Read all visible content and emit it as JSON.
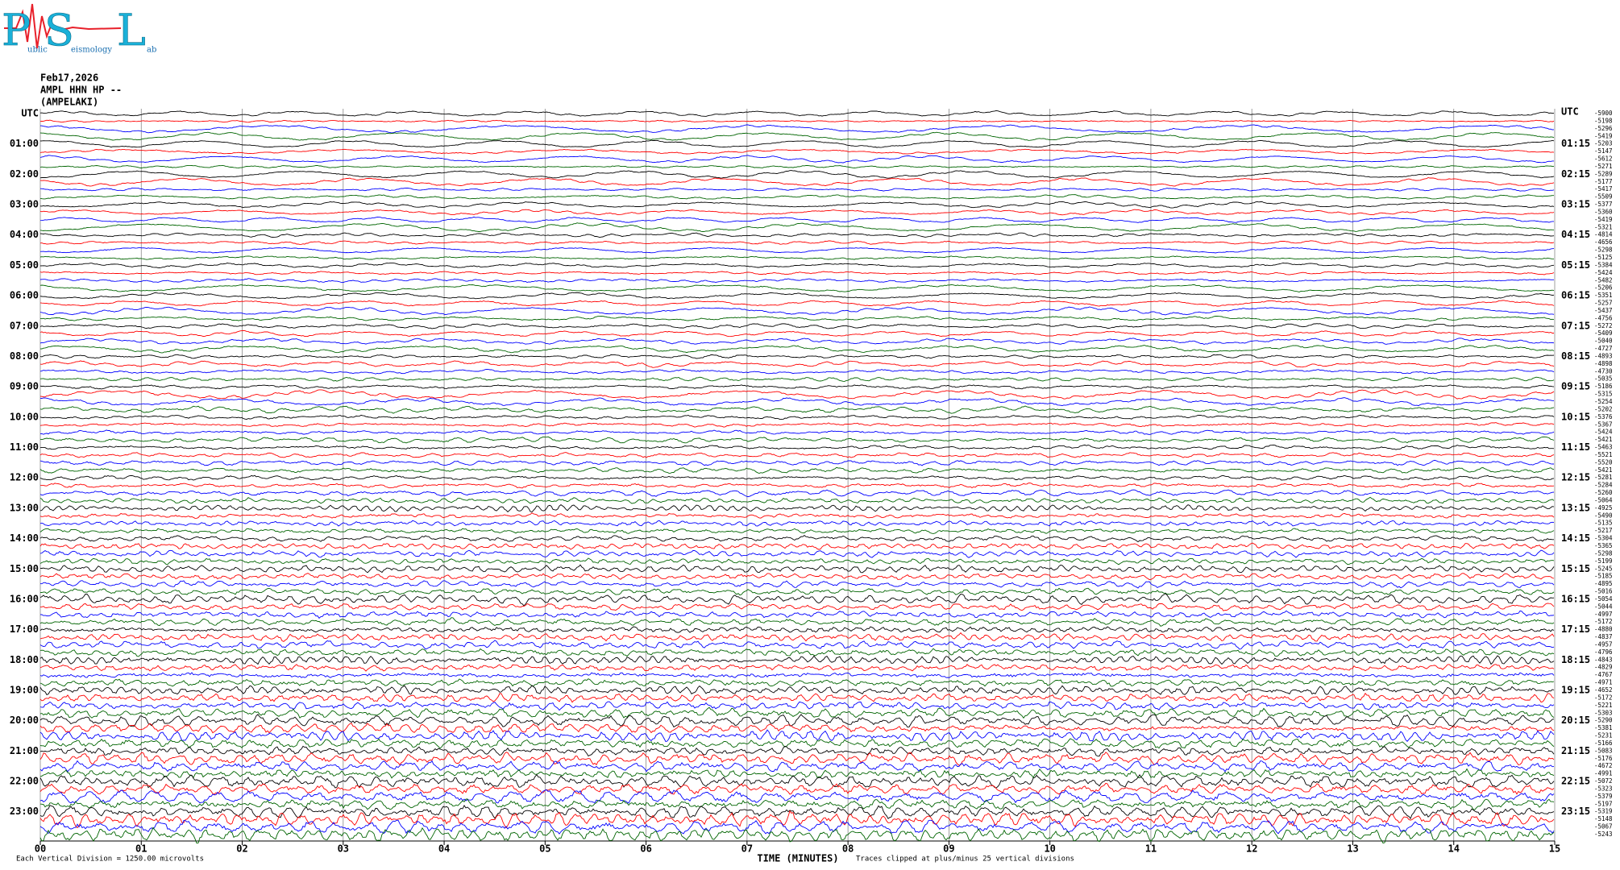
{
  "logo": [
    "P",
    "ublic",
    "S",
    "eismology",
    "L",
    "ab"
  ],
  "chart_data": {
    "type": "helicorder",
    "title": [
      "Feb17,2026",
      "AMPL HHN HP --",
      "(AMPELAKI)"
    ],
    "left_labels": [
      "UTC",
      "01:00",
      "02:00",
      "03:00",
      "04:00",
      "05:00",
      "06:00",
      "07:00",
      "08:00",
      "09:00",
      "10:00",
      "11:00",
      "12:00",
      "13:00",
      "14:00",
      "15:00",
      "16:00",
      "17:00",
      "18:00",
      "19:00",
      "20:00",
      "21:00",
      "22:00",
      "23:00"
    ],
    "right_labels": [
      "UTC",
      "01:15",
      "02:15",
      "03:15",
      "04:15",
      "05:15",
      "06:15",
      "07:15",
      "08:15",
      "09:15",
      "10:15",
      "11:15",
      "12:15",
      "13:15",
      "14:15",
      "15:15",
      "16:15",
      "17:15",
      "18:15",
      "19:15",
      "20:15",
      "21:15",
      "22:15",
      "23:15"
    ],
    "trace_offsets": [
      -5900,
      -5198,
      -5296,
      -5419,
      -5203,
      -5147,
      -5612,
      -5271,
      -5289,
      -5177,
      -5417,
      -5509,
      -5377,
      -5360,
      -5419,
      -5321,
      -4814,
      -4656,
      -5298,
      -5125,
      -5384,
      -5424,
      -5482,
      -5206,
      -5351,
      -5257,
      -5437,
      -4756,
      -5272,
      -5409,
      -5040,
      -4727,
      -4893,
      -4898,
      -4730,
      -5035,
      -5186,
      -5315,
      -5254,
      -5202,
      -5376,
      -5367,
      -5424,
      -5421,
      -5463,
      -5521,
      -5520,
      -5421,
      -5281,
      -5284,
      -5260,
      -5064,
      -4925,
      -5490,
      -5135,
      -5217,
      -5304,
      -5365,
      -5298,
      -5199,
      -5245,
      -5185,
      -4895,
      -5016,
      -5054,
      -5044,
      -4997,
      -5172,
      -4880,
      -4837,
      -4957,
      -4796,
      -4843,
      -4829,
      -4767,
      -4971,
      -4652,
      -5172,
      -5221,
      -5303,
      -5290,
      -5381,
      -5231,
      -5166,
      -5083,
      -5176,
      -4672,
      -4991,
      -5072,
      -5323,
      -5379,
      -5197,
      -5319,
      -5148,
      -5067,
      -5243
    ],
    "colors": [
      "#000000",
      "#ff0000",
      "#0000ff",
      "#006400"
    ],
    "xlim": [
      0,
      15
    ],
    "xticks": [
      {
        "value": 0,
        "label": "00"
      },
      {
        "value": 1,
        "label": "01"
      },
      {
        "value": 2,
        "label": "02"
      },
      {
        "value": 3,
        "label": "03"
      },
      {
        "value": 4,
        "label": "04"
      },
      {
        "value": 5,
        "label": "05"
      },
      {
        "value": 6,
        "label": "06"
      },
      {
        "value": 7,
        "label": "07"
      },
      {
        "value": 8,
        "label": "08"
      },
      {
        "value": 9,
        "label": "09"
      },
      {
        "value": 10,
        "label": "10"
      },
      {
        "value": 11,
        "label": "11"
      },
      {
        "value": 12,
        "label": "12"
      },
      {
        "value": 13,
        "label": "13"
      },
      {
        "value": 14,
        "label": "14"
      },
      {
        "value": 15,
        "label": "15"
      }
    ],
    "xlabel": "TIME (MINUTES)",
    "footnote_left": "Each Vertical Division = 1250.00 microvolts",
    "footnote_right": "Traces clipped at plus/minus 25 vertical divisions",
    "grid": true
  }
}
